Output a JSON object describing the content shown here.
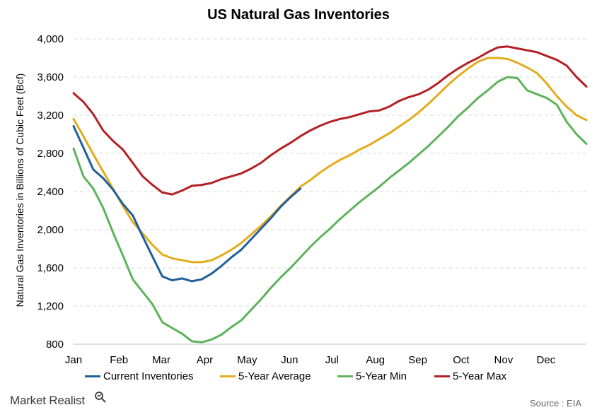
{
  "chart_data": {
    "type": "line",
    "title": "US Natural  Gas Inventories",
    "xlabel": "",
    "ylabel": "Natural Gas Inventories in Billions of Cubic Feet (Bcf)",
    "xlim": [
      0,
      52
    ],
    "ylim": [
      800,
      4000
    ],
    "yticks": [
      800,
      1200,
      1600,
      2000,
      2400,
      2800,
      3200,
      3600,
      4000
    ],
    "ytick_labels": [
      "800",
      "1,200",
      "1,600",
      "2,000",
      "2,400",
      "2,800",
      "3,200",
      "3,600",
      "4,000"
    ],
    "xtick_labels": [
      "Jan",
      "Feb",
      "Mar",
      "Apr",
      "May",
      "Jun",
      "Jul",
      "Aug",
      "Sep",
      "Oct",
      "Nov",
      "Dec"
    ],
    "xtick_positions": [
      0,
      4.6,
      8.9,
      13.3,
      17.6,
      21.9,
      26.2,
      30.6,
      34.9,
      39.3,
      43.6,
      47.9
    ],
    "grid": "horizontal dashed",
    "legend_position": "bottom",
    "series": [
      {
        "name": "Current Inventories",
        "color": "#1f5f9a",
        "x": [
          0,
          1,
          2,
          3,
          4,
          5,
          6,
          7,
          8,
          9,
          10,
          11,
          12,
          13,
          14,
          15,
          16,
          17,
          18,
          19,
          20,
          21,
          22,
          23,
          24
        ],
        "y": [
          3085,
          2860,
          2630,
          2540,
          2420,
          2270,
          2150,
          1930,
          1720,
          1510,
          1470,
          1490,
          1460,
          1480,
          1540,
          1620,
          1710,
          1790,
          1900,
          2010,
          2120,
          2240,
          2340,
          2430,
          null
        ]
      },
      {
        "name": "5-Year Average",
        "color": "#e3ac1d",
        "x": [
          0,
          1,
          2,
          3,
          4,
          5,
          6,
          7,
          8,
          9,
          10,
          11,
          12,
          13,
          14,
          15,
          16,
          17,
          18,
          19,
          20,
          21,
          22,
          23,
          24,
          25,
          26,
          27,
          28,
          29,
          30,
          31,
          32,
          33,
          34,
          35,
          36,
          37,
          38,
          39,
          40,
          41,
          42,
          43,
          44,
          45,
          46,
          47,
          48,
          49,
          50,
          51,
          52
        ],
        "y": [
          3160,
          2980,
          2790,
          2610,
          2430,
          2250,
          2080,
          1960,
          1840,
          1740,
          1700,
          1680,
          1660,
          1660,
          1680,
          1730,
          1790,
          1860,
          1950,
          2040,
          2140,
          2250,
          2350,
          2450,
          2520,
          2600,
          2670,
          2730,
          2780,
          2840,
          2890,
          2950,
          3010,
          3080,
          3150,
          3230,
          3320,
          3420,
          3520,
          3610,
          3690,
          3760,
          3800,
          3800,
          3790,
          3750,
          3700,
          3640,
          3530,
          3400,
          3290,
          3200,
          3150
        ],
        "x_end": 52
      },
      {
        "name": "5-Year Min",
        "color": "#5db35a",
        "x": [
          0,
          1,
          2,
          3,
          4,
          5,
          6,
          7,
          8,
          9,
          10,
          11,
          12,
          13,
          14,
          15,
          16,
          17,
          18,
          19,
          20,
          21,
          22,
          23,
          24,
          25,
          26,
          27,
          28,
          29,
          30,
          31,
          32,
          33,
          34,
          35,
          36,
          37,
          38,
          39,
          40,
          41,
          42,
          43,
          44,
          45,
          46,
          47,
          48,
          49,
          50,
          51,
          52
        ],
        "y": [
          2850,
          2560,
          2430,
          2230,
          1970,
          1730,
          1480,
          1350,
          1220,
          1030,
          970,
          910,
          830,
          820,
          850,
          900,
          980,
          1050,
          1160,
          1270,
          1390,
          1500,
          1600,
          1710,
          1820,
          1920,
          2010,
          2110,
          2200,
          2290,
          2370,
          2450,
          2540,
          2620,
          2700,
          2790,
          2880,
          2980,
          3080,
          3190,
          3280,
          3380,
          3460,
          3550,
          3600,
          3590,
          3460,
          3420,
          3380,
          3310,
          3130,
          3000,
          2900
        ]
      },
      {
        "name": "5-Year Max",
        "color": "#b42025",
        "x": [
          0,
          1,
          2,
          3,
          4,
          5,
          6,
          7,
          8,
          9,
          10,
          11,
          12,
          13,
          14,
          15,
          16,
          17,
          18,
          19,
          20,
          21,
          22,
          23,
          24,
          25,
          26,
          27,
          28,
          29,
          30,
          31,
          32,
          33,
          34,
          35,
          36,
          37,
          38,
          39,
          40,
          41,
          42,
          43,
          44,
          45,
          46,
          47,
          48,
          49,
          50,
          51,
          52
        ],
        "y": [
          3430,
          3340,
          3210,
          3040,
          2930,
          2840,
          2700,
          2560,
          2470,
          2390,
          2370,
          2410,
          2460,
          2470,
          2490,
          2530,
          2560,
          2590,
          2640,
          2700,
          2780,
          2850,
          2910,
          2980,
          3040,
          3090,
          3130,
          3160,
          3180,
          3210,
          3240,
          3250,
          3290,
          3350,
          3390,
          3420,
          3470,
          3540,
          3620,
          3690,
          3750,
          3800,
          3860,
          3910,
          3920,
          3900,
          3880,
          3860,
          3820,
          3780,
          3720,
          3600,
          3500
        ]
      }
    ]
  },
  "footer": {
    "brand": "Market Realist",
    "source": "Source : EIA"
  }
}
